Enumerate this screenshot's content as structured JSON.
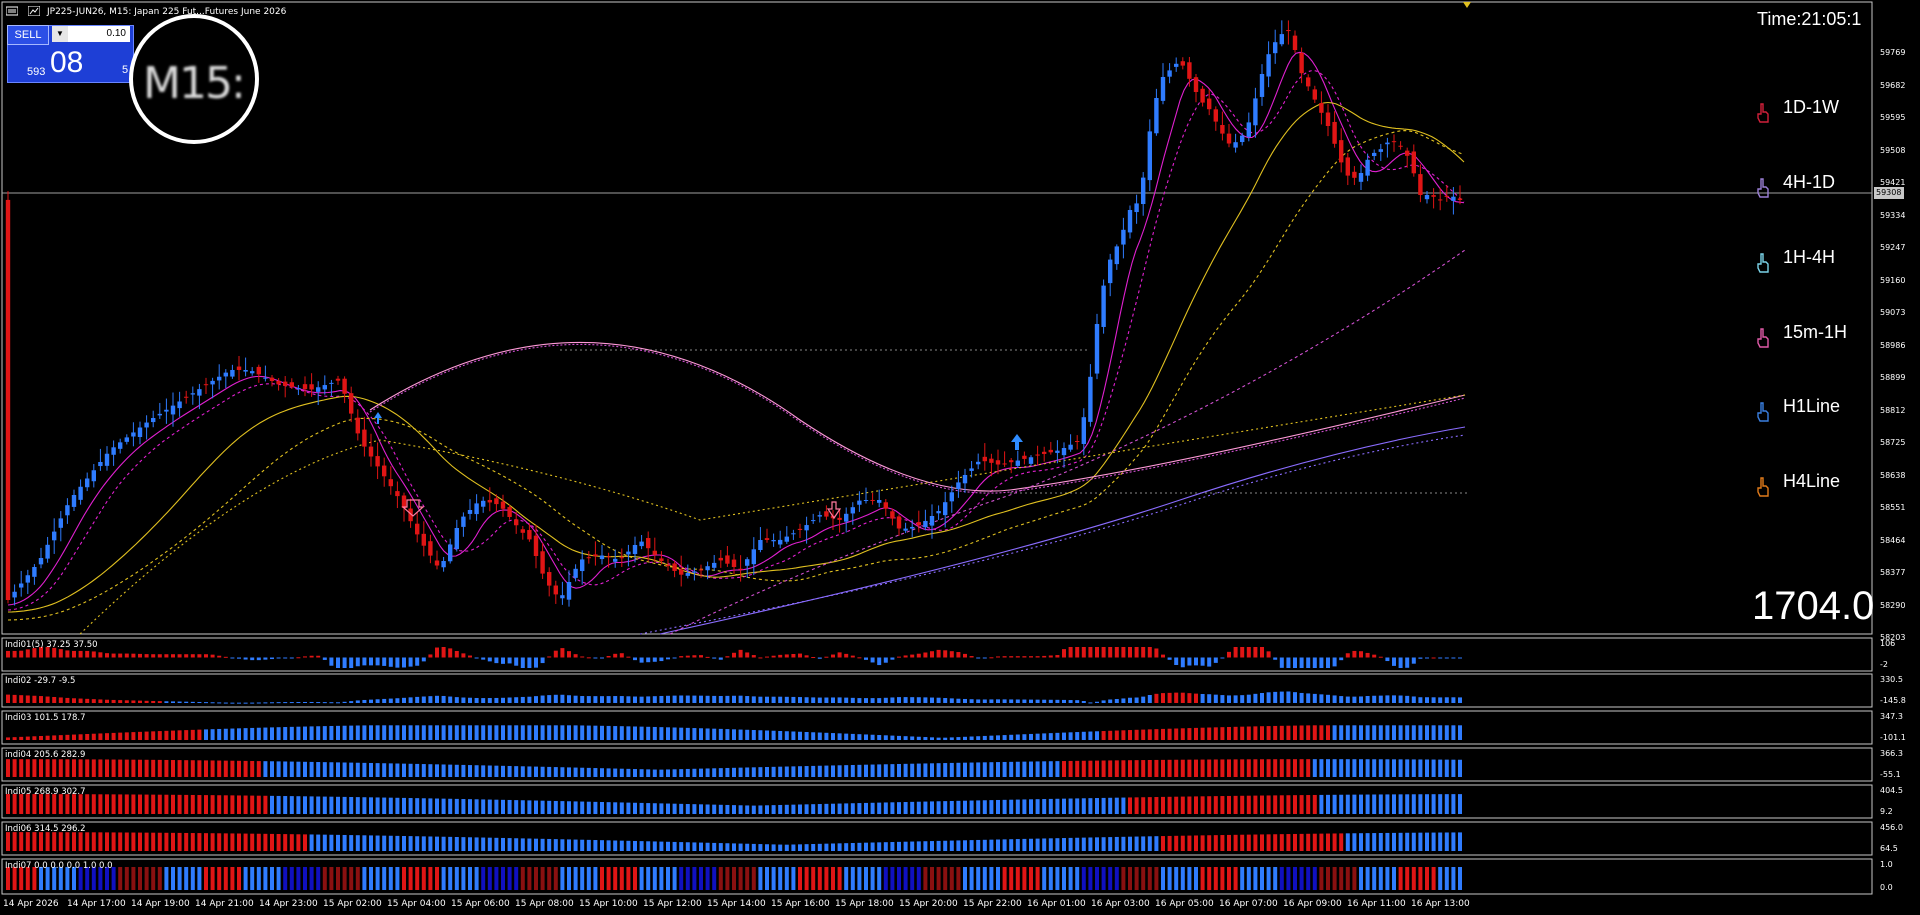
{
  "window": {
    "title": "JP225-JUN26, M15:  Japan 225 Fut...Futures June 2026"
  },
  "trade_panel": {
    "sell_label": "SELL",
    "lot": "0.10",
    "price_small": "593",
    "price_big": "08",
    "right_partial": "5"
  },
  "magnifier": {
    "text": "M15:"
  },
  "timer": {
    "label": "Time:21:05:1"
  },
  "big_value": "1704.0",
  "timeframes": [
    {
      "label": "1D-1W",
      "color": "#d0203a",
      "icon": "hand-pointer-icon"
    },
    {
      "label": "4H-1D",
      "color": "#9b7fd6",
      "icon": "hand-pointer-icon"
    },
    {
      "label": "1H-4H",
      "color": "#7ad3e8",
      "icon": "hand-pointer-icon"
    },
    {
      "label": "15m-1H",
      "color": "#e05aa8",
      "icon": "hand-pointer-icon"
    },
    {
      "label": "H1Line",
      "color": "#3a7fe0",
      "icon": "hand-pointer-icon"
    },
    {
      "label": "H4Line",
      "color": "#e07a1a",
      "icon": "hand-pointer-icon"
    }
  ],
  "price_axis": {
    "labels": [
      "59769",
      "59682",
      "59595",
      "59508",
      "59421",
      "59334",
      "59247",
      "59160",
      "59073",
      "58986",
      "58899",
      "58812",
      "58725",
      "58638",
      "58551",
      "58464",
      "58377",
      "58290",
      "58203"
    ],
    "current_price_label": "59308"
  },
  "time_axis": [
    "14 Apr 2026",
    "14 Apr 17:00",
    "14 Apr 19:00",
    "14 Apr 21:00",
    "14 Apr 23:00",
    "15 Apr 02:00",
    "15 Apr 04:00",
    "15 Apr 06:00",
    "15 Apr 08:00",
    "15 Apr 10:00",
    "15 Apr 12:00",
    "15 Apr 14:00",
    "15 Apr 16:00",
    "15 Apr 18:00",
    "15 Apr 20:00",
    "15 Apr 22:00",
    "16 Apr 01:00",
    "16 Apr 03:00",
    "16 Apr 05:00",
    "16 Apr 07:00",
    "16 Apr 09:00",
    "16 Apr 11:00",
    "16 Apr 13:00"
  ],
  "indicators": [
    {
      "label": "Indi01(5) 37.25 37.50",
      "top_label": "106",
      "bottom_label": "-2"
    },
    {
      "label": "Indi02 -29.7 -9.5",
      "top_label": "330.5",
      "bottom_label": "-145.8"
    },
    {
      "label": "Indi03 101.5 178.7",
      "top_label": "347.3",
      "bottom_label": "-101.1"
    },
    {
      "label": "indi04 205.6 282.9",
      "top_label": "366.3",
      "bottom_label": "-55.1"
    },
    {
      "label": "Indi05 268.9 302.7",
      "top_label": "404.5",
      "bottom_label": "9.2"
    },
    {
      "label": "Indi06 314.5 296.2",
      "top_label": "456.0",
      "bottom_label": "64.5"
    },
    {
      "label": "Indi07 0.0 0.0 0.0 1.0 0.0",
      "top_label": "1.0",
      "bottom_label": "0.0"
    }
  ],
  "colors": {
    "bull": "#2f7cff",
    "bear": "#e01515",
    "ma_fast": "#e020d0",
    "ma_mid": "#e0c020",
    "ma_slow": "#d050d0",
    "ma_long": "#8a6cff"
  }
}
